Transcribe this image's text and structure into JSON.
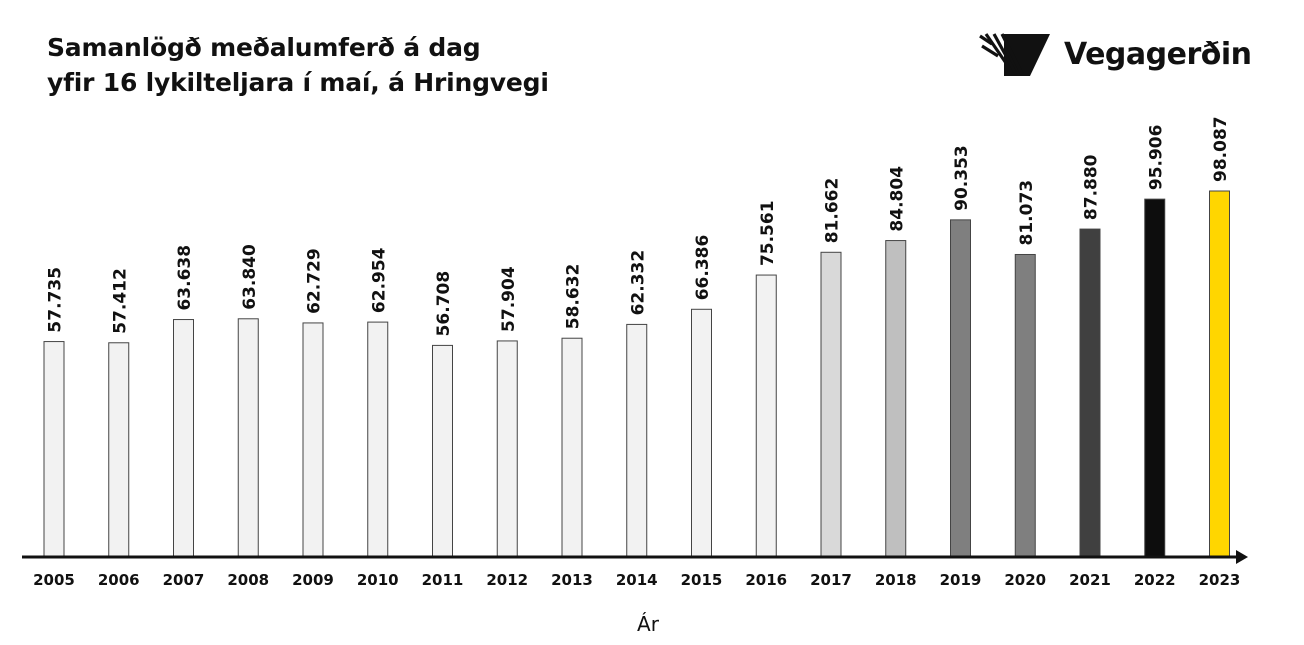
{
  "title_lines": [
    "Samanlögð meðalumferð á dag",
    "yfir 16 lykilteljara í maí, á Hringvegi"
  ],
  "logo": {
    "text": "Vegagerðin",
    "icon": "vegagerdin-stripes-logo"
  },
  "chart_data": {
    "type": "bar",
    "categories": [
      "2005",
      "2006",
      "2007",
      "2008",
      "2009",
      "2010",
      "2011",
      "2012",
      "2013",
      "2014",
      "2015",
      "2016",
      "2017",
      "2018",
      "2019",
      "2020",
      "2021",
      "2022",
      "2023"
    ],
    "values": [
      57735,
      57412,
      63638,
      63840,
      62729,
      62954,
      56708,
      57904,
      58632,
      62332,
      66386,
      75561,
      81662,
      84804,
      90353,
      81073,
      87880,
      95906,
      98087
    ],
    "value_labels": [
      "57.735",
      "57.412",
      "63.638",
      "63.840",
      "62.729",
      "62.954",
      "56.708",
      "57.904",
      "58.632",
      "62.332",
      "66.386",
      "75.561",
      "81.662",
      "84.804",
      "90.353",
      "81.073",
      "87.880",
      "95.906",
      "98.087"
    ],
    "bar_colors": [
      "#f2f2f2",
      "#f2f2f2",
      "#f2f2f2",
      "#f2f2f2",
      "#f2f2f2",
      "#f2f2f2",
      "#f2f2f2",
      "#f2f2f2",
      "#f2f2f2",
      "#f2f2f2",
      "#f2f2f2",
      "#f2f2f2",
      "#d9d9d9",
      "#bfbfbf",
      "#7f7f7f",
      "#7f7f7f",
      "#404040",
      "#0d0d0d",
      "#ffd600"
    ],
    "xlabel": "Ár",
    "ylabel": "",
    "ylim": [
      0,
      100000
    ],
    "grid": false,
    "legend": "none"
  }
}
